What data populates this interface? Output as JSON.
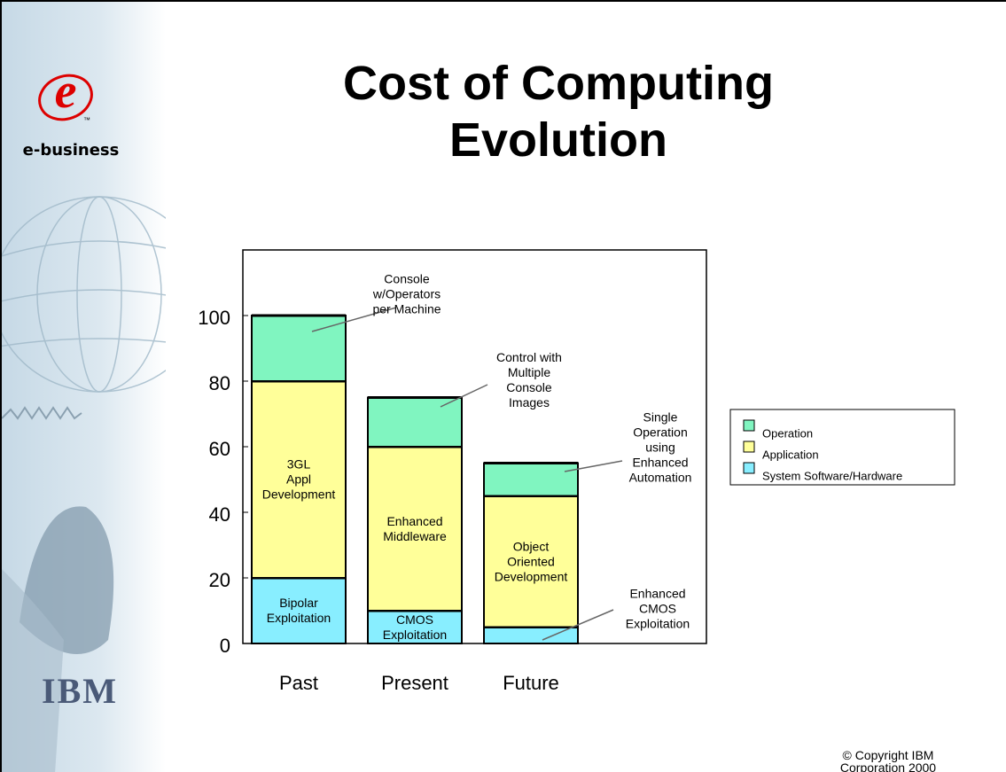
{
  "sidebar": {
    "logo_mark": "e",
    "trademark": "™",
    "brand": "e-business",
    "company": "IBM"
  },
  "footer": {
    "copyright": "© Copyright IBM Corporation 2000"
  },
  "chart_data": {
    "type": "bar",
    "stacked": true,
    "title": "Cost of Computing Evolution",
    "categories": [
      "Past",
      "Present",
      "Future"
    ],
    "ylim": [
      0,
      120
    ],
    "yticks": [
      0,
      20,
      40,
      60,
      80,
      100
    ],
    "series": [
      {
        "name": "System Software/Hardware",
        "color": "#88eeff",
        "values": [
          20,
          10,
          5
        ],
        "labels": [
          "Bipolar\nExploitation",
          "CMOS\nExploitation",
          null
        ]
      },
      {
        "name": "Application",
        "color": "#ffff99",
        "values": [
          60,
          50,
          40
        ],
        "labels": [
          "3GL\nAppl\nDevelopment",
          "Enhanced\nMiddleware",
          "Object\nOriented\nDevelopment"
        ]
      },
      {
        "name": "Operation",
        "color": "#80f5c0",
        "values": [
          20,
          15,
          10
        ],
        "labels": [
          null,
          null,
          null
        ]
      }
    ],
    "annotations": [
      "Console\nw/Operators\nper Machine",
      "Control with\nMultiple\nConsole\nImages",
      "Single\nOperation\nusing\nEnhanced\nAutomation",
      "Enhanced\nCMOS\nExploitation"
    ]
  }
}
